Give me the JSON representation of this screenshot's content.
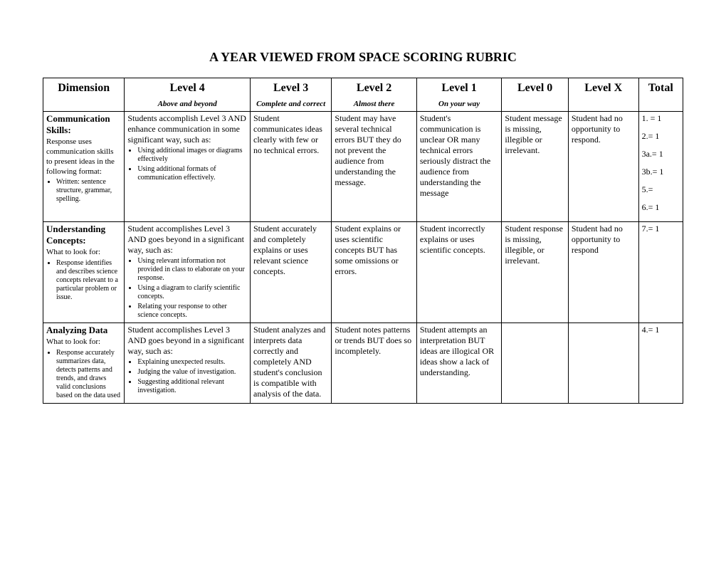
{
  "title": "A YEAR VIEWED FROM SPACE SCORING RUBRIC",
  "headers": {
    "dimension": "Dimension",
    "l4": "Level 4",
    "l3": "Level 3",
    "l2": "Level 2",
    "l1": "Level 1",
    "l0": "Level 0",
    "lx": "Level X",
    "total": "Total"
  },
  "subheads": {
    "l4": "Above and beyond",
    "l3": "Complete and correct",
    "l2": "Almost there",
    "l1": "On your way"
  },
  "r1": {
    "dim_title": "Communication Skills:",
    "dim_sub": "Response uses communication skills to present ideas in the following format:",
    "dim_b1": "Written: sentence structure, grammar, spelling.",
    "l4_lead": "Students accomplish Level 3 AND enhance communication in some significant way, such as:",
    "l4_b1": "Using additional images or diagrams effectively",
    "l4_b2": "Using additional formats of communication effectively.",
    "l3": "Student communicates ideas clearly with few or no technical errors.",
    "l2": "Student may have several technical errors BUT they do not prevent the audience from understanding the message.",
    "l1": "Student's communication is unclear OR many technical errors seriously distract the audience from understanding the message",
    "l0": "Student message is missing, illegible or irrelevant.",
    "lx": "Student had no opportunity to respond.",
    "t1": "1. =  1",
    "t2": "2.= 1",
    "t3": "3a.= 1",
    "t4": "3b.= 1",
    "t5": "5.=",
    "t6": "6.= 1"
  },
  "r2": {
    "dim_title": "Understanding Concepts:",
    "dim_sub": "What to look for:",
    "dim_b1": "Response identifies and describes science concepts relevant to a particular problem or issue.",
    "l4_lead": "Student accomplishes Level 3 AND goes beyond in a significant way, such as:",
    "l4_b1": "Using relevant information not provided in class to elaborate on your response.",
    "l4_b2": "Using a diagram to clarify scientific concepts.",
    "l4_b3": "Relating your response to other science concepts.",
    "l3": "Student accurately and completely explains or uses relevant science concepts.",
    "l2": "Student explains or uses scientific concepts BUT has some omissions or errors.",
    "l1": "Student incorrectly explains or uses scientific concepts.",
    "l0": "Student response is missing, illegible, or irrelevant.",
    "lx": "Student had no opportunity to respond",
    "t1": "7.= 1"
  },
  "r3": {
    "dim_title": "Analyzing Data",
    "dim_sub": "What to look for:",
    "dim_b1": "Response accurately summarizes data, detects patterns and trends, and draws valid conclusions based on the data used",
    "l4_lead": "Student accomplishes Level 3 AND goes beyond in a significant way, such as:",
    "l4_b1": "Explaining unexpected results.",
    "l4_b2": "Judging the value of investigation.",
    "l4_b3": "Suggesting additional relevant investigation.",
    "l3": "Student analyzes and interprets data correctly and completely AND student's conclusion is compatible with analysis of the data.",
    "l2": "Student notes patterns or trends BUT does so incompletely.",
    "l1": "Student attempts an interpretation BUT ideas are illogical OR ideas show a lack of understanding.",
    "t1": "4.= 1"
  }
}
